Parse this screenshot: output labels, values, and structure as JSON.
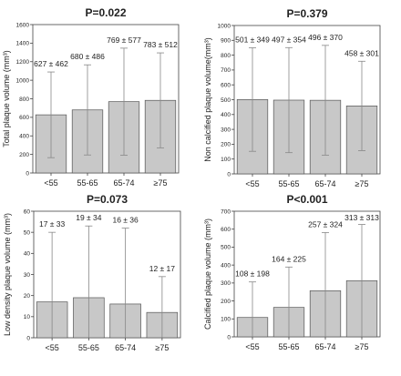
{
  "chart_data": [
    {
      "type": "bar",
      "title": "P=0.022",
      "ylabel": "Total plaque volume (mm³)",
      "categories": [
        "<55",
        "55-65",
        "65-74",
        "≥75"
      ],
      "values": [
        627,
        680,
        769,
        783
      ],
      "error": [
        462,
        486,
        577,
        512
      ],
      "data_labels": [
        "627 ± 462",
        "680 ± 486",
        "769 ± 577",
        "783 ± 512"
      ],
      "ylim": [
        0,
        1600
      ],
      "yticks": [
        0,
        200,
        400,
        600,
        800,
        1000,
        1200,
        1400,
        1600
      ],
      "error_clipped_at_zero": true
    },
    {
      "type": "bar",
      "title": "P=0.379",
      "ylabel": "Non calcified plaque volume(mm³)",
      "categories": [
        "<55",
        "55-65",
        "65-74",
        "≥75"
      ],
      "values": [
        501,
        497,
        496,
        458
      ],
      "error": [
        349,
        354,
        370,
        301
      ],
      "data_labels": [
        "501 ± 349",
        "497 ± 354",
        "496 ± 370",
        "458 ± 301"
      ],
      "ylim": [
        0,
        1000
      ],
      "yticks": [
        0,
        100,
        200,
        300,
        400,
        500,
        600,
        700,
        800,
        900,
        1000
      ],
      "error_clipped_at_zero": true
    },
    {
      "type": "bar",
      "title": "P=0.073",
      "ylabel": "Low density  plaque volume (mm³)",
      "categories": [
        "<55",
        "55-65",
        "65-74",
        "≥75"
      ],
      "values": [
        17,
        19,
        16,
        12
      ],
      "error": [
        33,
        34,
        36,
        17
      ],
      "data_labels": [
        "17 ± 33",
        "19 ± 34",
        "16 ± 36",
        "12 ± 17"
      ],
      "ylim": [
        0,
        60
      ],
      "yticks": [
        0,
        10,
        20,
        30,
        40,
        50,
        60
      ],
      "error_clipped_at_zero": true
    },
    {
      "type": "bar",
      "title": "P<0.001",
      "ylabel": "Calcified plaque volume (mm³)",
      "categories": [
        "<55",
        "55-65",
        "65-74",
        "≥75"
      ],
      "values": [
        108,
        164,
        257,
        313
      ],
      "error": [
        198,
        225,
        324,
        313
      ],
      "data_labels": [
        "108 ± 198",
        "164 ± 225",
        "257 ± 324",
        "313 ± 313"
      ],
      "ylim": [
        0,
        700
      ],
      "yticks": [
        0,
        100,
        200,
        300,
        400,
        500,
        600,
        700
      ],
      "error_clipped_at_zero": true
    }
  ],
  "colors": {
    "bar_fill": "#c8c8c8",
    "bar_stroke": "#555555",
    "axis": "#444444",
    "error_bar": "#888888"
  }
}
